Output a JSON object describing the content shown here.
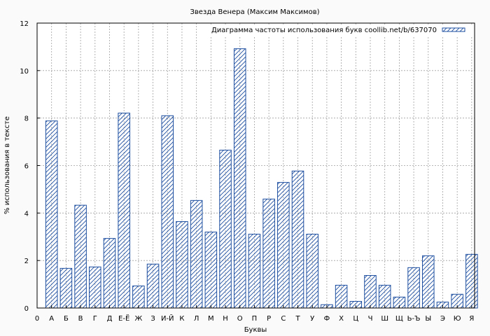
{
  "chart_data": {
    "type": "bar",
    "title": "Звезда Венера (Максим Максимов)",
    "xlabel": "Буквы",
    "ylabel": "% использования в тексте",
    "legend": "Диаграмма частоты использования букв coollib.net/b/637070",
    "legend_position": "top-right",
    "ylim": [
      0,
      12
    ],
    "yticks": [
      0,
      2,
      4,
      6,
      8,
      10,
      12
    ],
    "grid": true,
    "x_start_label": "0",
    "categories": [
      "А",
      "Б",
      "В",
      "Г",
      "Д",
      "Е-Ё",
      "Ж",
      "З",
      "И-Й",
      "К",
      "Л",
      "М",
      "Н",
      "О",
      "П",
      "Р",
      "С",
      "Т",
      "У",
      "Ф",
      "Х",
      "Ц",
      "Ч",
      "Ш",
      "Щ",
      "Ь-Ъ",
      "Ы",
      "Э",
      "Ю",
      "Я"
    ],
    "values": [
      7.88,
      1.67,
      4.33,
      1.73,
      2.93,
      8.21,
      0.93,
      1.85,
      8.1,
      3.64,
      4.53,
      3.2,
      6.65,
      10.92,
      3.11,
      4.59,
      5.29,
      5.77,
      3.11,
      0.14,
      0.96,
      0.28,
      1.37,
      0.96,
      0.46,
      1.7,
      2.2,
      0.25,
      0.58,
      2.26
    ],
    "colors": {
      "bar": "#1e4fa0",
      "grid": "#a0a0a0",
      "background": "#fafafa",
      "plot_background": "#ffffff"
    }
  }
}
